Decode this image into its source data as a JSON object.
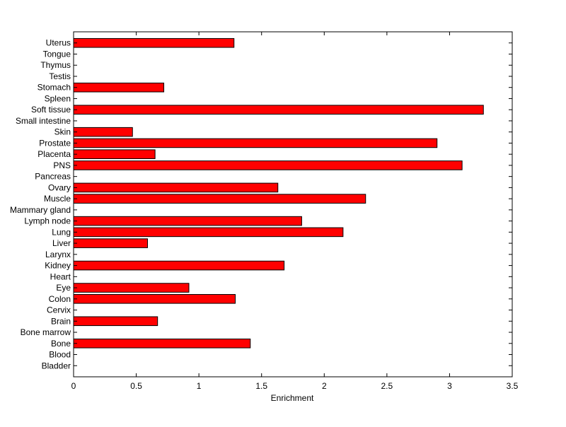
{
  "chart_data": {
    "type": "bar",
    "orientation": "horizontal",
    "categories": [
      "Bladder",
      "Blood",
      "Bone",
      "Bone marrow",
      "Brain",
      "Cervix",
      "Colon",
      "Eye",
      "Heart",
      "Kidney",
      "Larynx",
      "Liver",
      "Lung",
      "Lymph node",
      "Mammary gland",
      "Muscle",
      "Ovary",
      "Pancreas",
      "PNS",
      "Placenta",
      "Prostate",
      "Skin",
      "Small intestine",
      "Soft tissue",
      "Spleen",
      "Stomach",
      "Testis",
      "Thymus",
      "Tongue",
      "Uterus"
    ],
    "values": [
      0,
      0,
      1.41,
      0,
      0.67,
      0,
      1.29,
      0.92,
      0,
      1.68,
      0,
      0.59,
      2.15,
      1.82,
      0,
      2.33,
      1.63,
      0,
      3.1,
      0.65,
      2.9,
      0.47,
      0,
      3.27,
      0,
      0.72,
      0,
      0,
      0,
      1.28
    ],
    "title": "",
    "xlabel": "Enrichment",
    "ylabel": "",
    "xlim": [
      0,
      3.5
    ],
    "xticks": [
      0,
      0.5,
      1,
      1.5,
      2,
      2.5,
      3,
      3.5
    ],
    "xtick_labels": [
      "0",
      "0.5",
      "1",
      "1.5",
      "2",
      "2.5",
      "3",
      "3.5"
    ],
    "bar_color": "#ff0000",
    "grid": false,
    "legend": "none"
  }
}
